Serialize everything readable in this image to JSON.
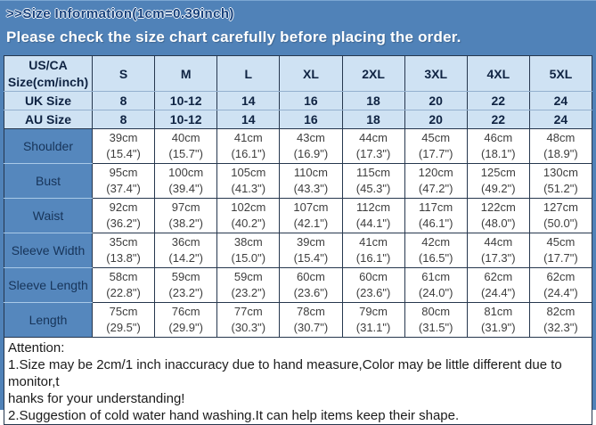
{
  "banner": {
    "title": ">>Size Information(1cm=0.39inch)",
    "subtitle": "Please check the size chart carefully before placing the order."
  },
  "table": {
    "corner": "US/CA\nSize(cm/inch)",
    "sizes": [
      "S",
      "M",
      "L",
      "XL",
      "2XL",
      "3XL",
      "4XL",
      "5XL"
    ],
    "size_rows": [
      {
        "label": "UK Size",
        "values": [
          "8",
          "10-12",
          "14",
          "16",
          "18",
          "20",
          "22",
          "24"
        ]
      },
      {
        "label": "AU Size",
        "values": [
          "8",
          "10-12",
          "14",
          "16",
          "18",
          "20",
          "22",
          "24"
        ]
      }
    ],
    "measure_rows": [
      {
        "label": "Shoulder",
        "values": [
          "39cm\n(15.4\")",
          "40cm\n(15.7\")",
          "41cm\n(16.1\")",
          "43cm\n(16.9\")",
          "44cm\n(17.3\")",
          "45cm\n(17.7\")",
          "46cm\n(18.1\")",
          "48cm\n(18.9\")"
        ]
      },
      {
        "label": "Bust",
        "values": [
          "95cm\n(37.4\")",
          "100cm\n(39.4\")",
          "105cm\n(41.3\")",
          "110cm\n(43.3\")",
          "115cm\n(45.3\")",
          "120cm\n(47.2\")",
          "125cm\n(49.2\")",
          "130cm\n(51.2\")"
        ]
      },
      {
        "label": "Waist",
        "values": [
          "92cm\n(36.2\")",
          "97cm\n(38.2\")",
          "102cm\n(40.2\")",
          "107cm\n(42.1\")",
          "112cm\n(44.1\")",
          "117cm\n(46.1\")",
          "122cm\n(48.0\")",
          "127cm\n(50.0\")"
        ]
      },
      {
        "label": "Sleeve Width",
        "values": [
          "35cm\n(13.8\")",
          "36cm\n(14.2\")",
          "38cm\n(15.0\")",
          "39cm\n(15.4\")",
          "41cm\n(16.1\")",
          "42cm\n(16.5\")",
          "44cm\n(17.3\")",
          "45cm\n(17.7\")"
        ]
      },
      {
        "label": "Sleeve Length",
        "values": [
          "58cm\n(22.8\")",
          "59cm\n(23.2\")",
          "59cm\n(23.2\")",
          "60cm\n(23.6\")",
          "60cm\n(23.6\")",
          "61cm\n(24.0\")",
          "62cm\n(24.4\")",
          "62cm\n(24.4\")"
        ]
      },
      {
        "label": "Length",
        "values": [
          "75cm\n(29.5\")",
          "76cm\n(29.9\")",
          "77cm\n(30.3\")",
          "78cm\n(30.7\")",
          "79cm\n(31.1\")",
          "80cm\n(31.5\")",
          "81cm\n(31.9\")",
          "82cm\n(32.3\")"
        ]
      }
    ]
  },
  "attention": {
    "lines": [
      "Attention:",
      "1.Size may be 2cm/1 inch inaccuracy due to hand measure,Color may be little different due to monitor,t",
      "hanks for your understanding!",
      "2.Suggestion of cold water hand washing.It can help items keep their shape."
    ]
  },
  "colors": {
    "frame_blue": "#5082b8",
    "label_cell_blue": "#5587bd",
    "header_light_blue": "#cfe2f3",
    "border_dark": "#26374e",
    "banner_title_navy": "#16407c",
    "data_text_gray": "#3e3e3e"
  },
  "chart_data": {
    "type": "table",
    "title": ">>Size Information(1cm=0.39inch)",
    "subtitle": "Please check the size chart carefully before placing the order.",
    "columns": [
      "US/CA Size(cm/inch)",
      "S",
      "M",
      "L",
      "XL",
      "2XL",
      "3XL",
      "4XL",
      "5XL"
    ],
    "rows": [
      [
        "UK Size",
        "8",
        "10-12",
        "14",
        "16",
        "18",
        "20",
        "22",
        "24"
      ],
      [
        "AU Size",
        "8",
        "10-12",
        "14",
        "16",
        "18",
        "20",
        "22",
        "24"
      ],
      [
        "Shoulder",
        "39cm (15.4\")",
        "40cm (15.7\")",
        "41cm (16.1\")",
        "43cm (16.9\")",
        "44cm (17.3\")",
        "45cm (17.7\")",
        "46cm (18.1\")",
        "48cm (18.9\")"
      ],
      [
        "Bust",
        "95cm (37.4\")",
        "100cm (39.4\")",
        "105cm (41.3\")",
        "110cm (43.3\")",
        "115cm (45.3\")",
        "120cm (47.2\")",
        "125cm (49.2\")",
        "130cm (51.2\")"
      ],
      [
        "Waist",
        "92cm (36.2\")",
        "97cm (38.2\")",
        "102cm (40.2\")",
        "107cm (42.1\")",
        "112cm (44.1\")",
        "117cm (46.1\")",
        "122cm (48.0\")",
        "127cm (50.0\")"
      ],
      [
        "Sleeve Width",
        "35cm (13.8\")",
        "36cm (14.2\")",
        "38cm (15.0\")",
        "39cm (15.4\")",
        "41cm (16.1\")",
        "42cm (16.5\")",
        "44cm (17.3\")",
        "45cm (17.7\")"
      ],
      [
        "Sleeve Length",
        "58cm (22.8\")",
        "59cm (23.2\")",
        "59cm (23.2\")",
        "60cm (23.6\")",
        "60cm (23.6\")",
        "61cm (24.0\")",
        "62cm (24.4\")",
        "62cm (24.4\")"
      ],
      [
        "Length",
        "75cm (29.5\")",
        "76cm (29.9\")",
        "77cm (30.3\")",
        "78cm (30.7\")",
        "79cm (31.1\")",
        "80cm (31.5\")",
        "81cm (31.9\")",
        "82cm (32.3\")"
      ]
    ]
  }
}
